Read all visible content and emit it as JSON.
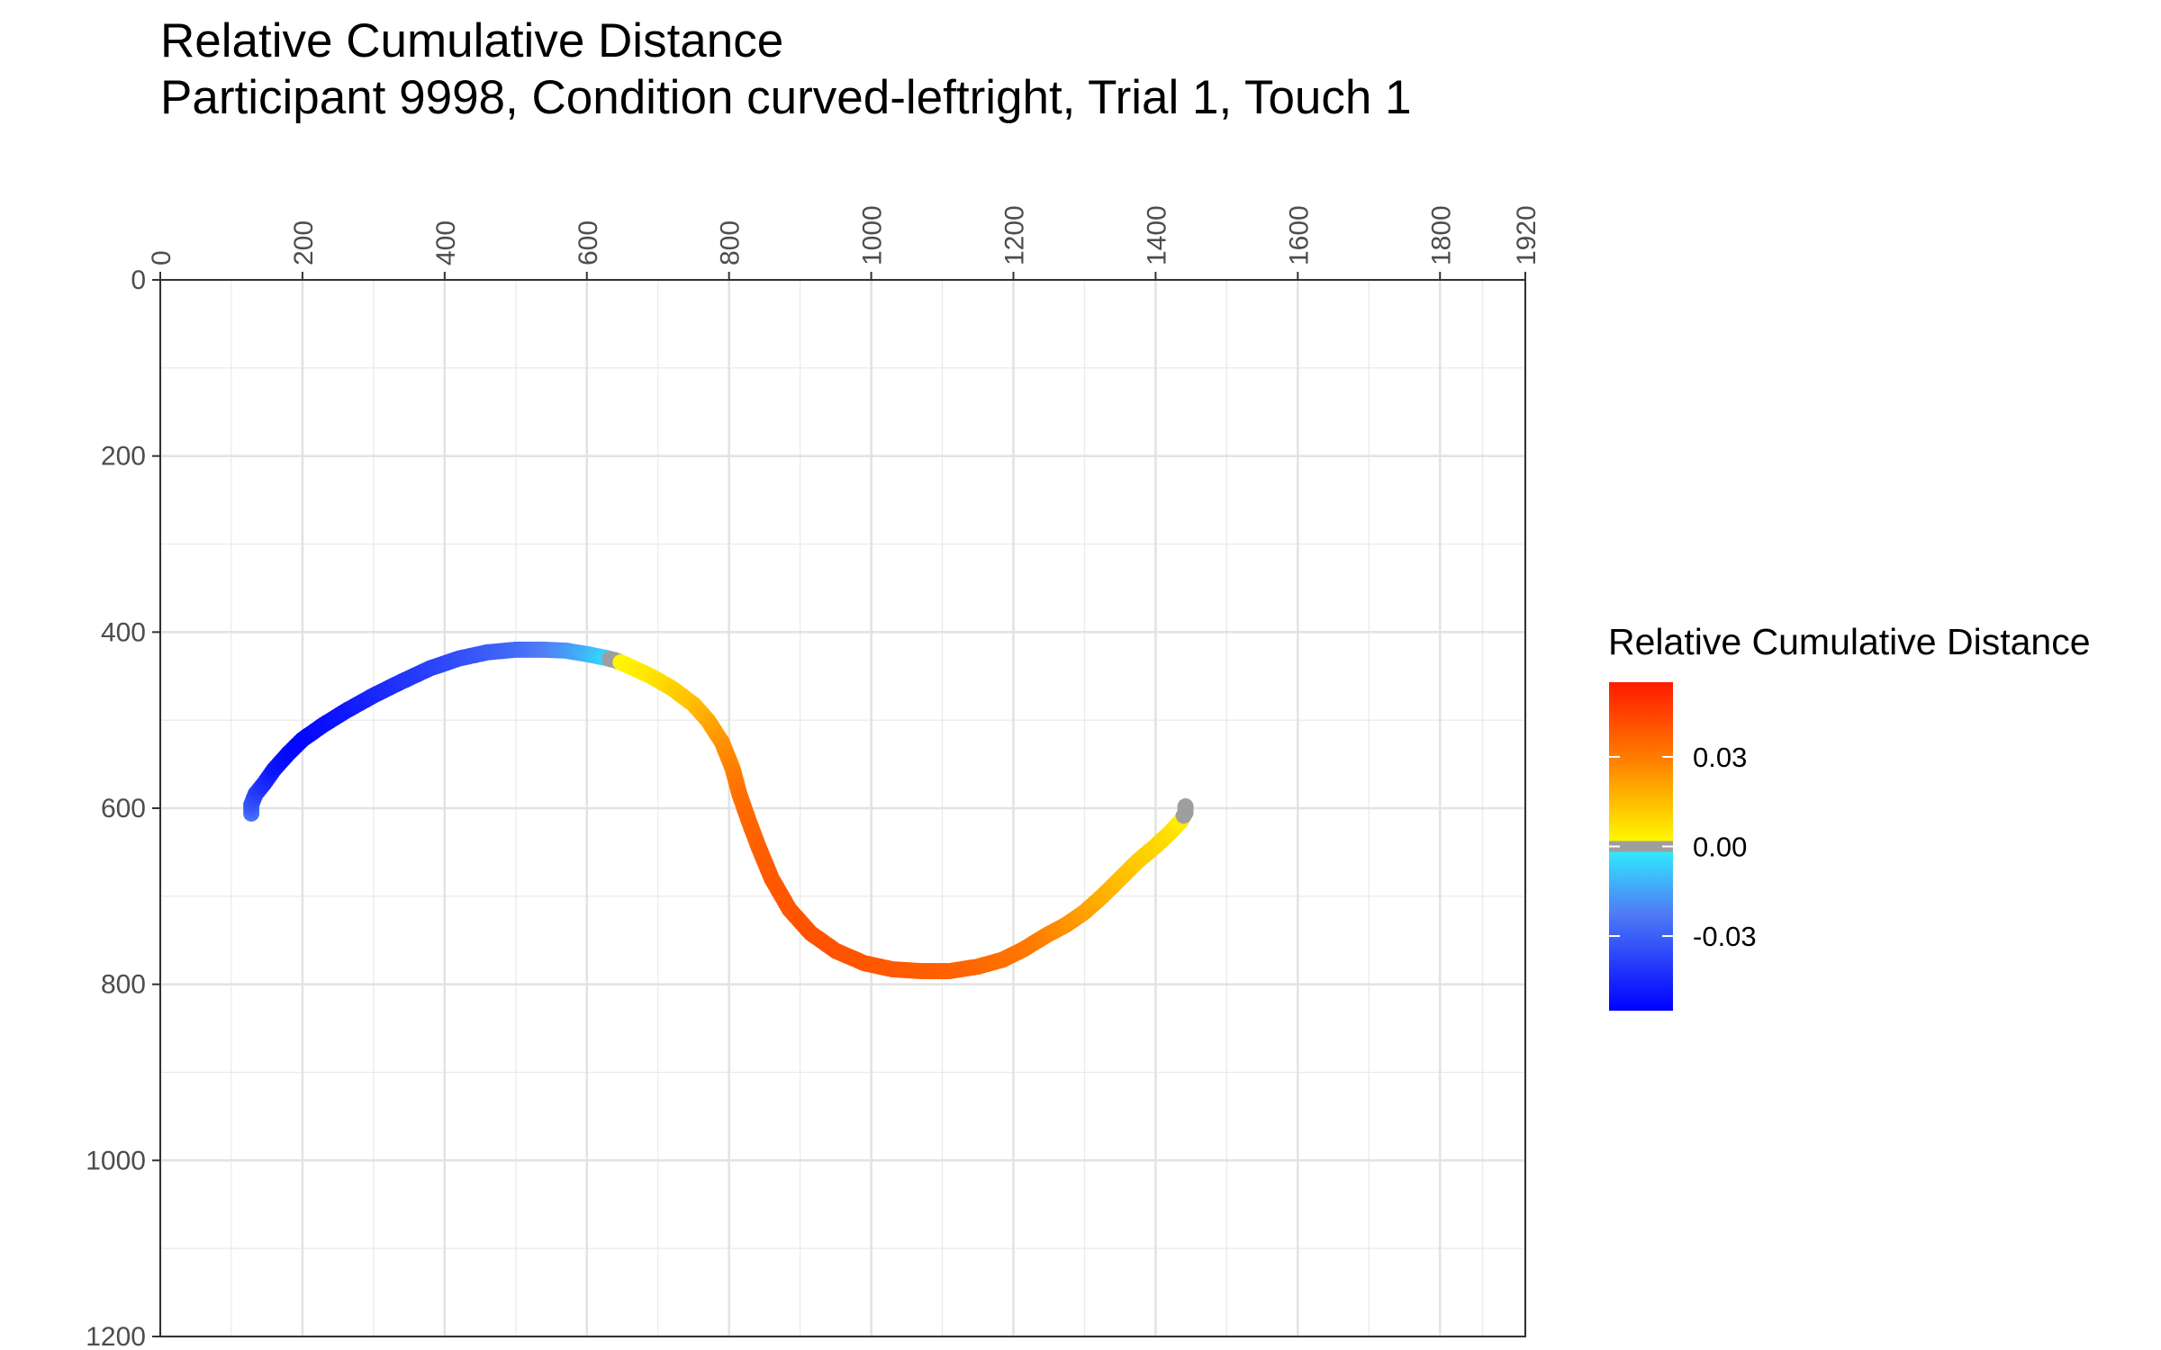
{
  "title": "Relative Cumulative Distance",
  "subtitle": "Participant 9998, Condition curved-leftright, Trial 1, Touch 1",
  "chart_data": {
    "type": "scatter",
    "title": "Relative Cumulative Distance",
    "subtitle": "Participant 9998, Condition curved-leftright, Trial 1, Touch 1",
    "xlabel": "",
    "ylabel": "",
    "xlim": [
      0,
      1920
    ],
    "ylim": [
      0,
      1200
    ],
    "x_axis_position": "top",
    "y_reversed": true,
    "grid": true,
    "x_ticks": [
      0,
      200,
      400,
      600,
      800,
      1000,
      1200,
      1400,
      1600,
      1800,
      1920
    ],
    "x_minor_ticks": [
      100,
      300,
      500,
      700,
      900,
      1100,
      1300,
      1500,
      1700,
      1860
    ],
    "y_ticks": [
      0,
      200,
      400,
      600,
      800,
      1000,
      1200
    ],
    "y_minor_ticks": [
      100,
      300,
      500,
      700,
      900,
      1100
    ],
    "legend": {
      "title": "Relative Cumulative Distance",
      "placement": "right",
      "min": -0.055,
      "max": 0.055,
      "breaks": [
        0.03,
        0.0,
        -0.03
      ],
      "break_labels": [
        "0.03",
        "0.00",
        "-0.03"
      ],
      "colors_negative": [
        "#0000ff",
        "#4f7df5",
        "#2ff2ff"
      ],
      "colors_positive": [
        "#ffff00",
        "#ff7a00",
        "#ff1a00"
      ],
      "na_color": "#9e9e9e"
    },
    "series": [
      {
        "points": [
          {
            "x": 128,
            "y": 606,
            "v": -0.03
          },
          {
            "x": 128,
            "y": 596,
            "v": -0.036
          },
          {
            "x": 134,
            "y": 584,
            "v": -0.04
          },
          {
            "x": 146,
            "y": 572,
            "v": -0.045
          },
          {
            "x": 160,
            "y": 556,
            "v": -0.05
          },
          {
            "x": 180,
            "y": 538,
            "v": -0.053
          },
          {
            "x": 200,
            "y": 522,
            "v": -0.054
          },
          {
            "x": 230,
            "y": 505,
            "v": -0.052
          },
          {
            "x": 260,
            "y": 490,
            "v": -0.05
          },
          {
            "x": 300,
            "y": 472,
            "v": -0.047
          },
          {
            "x": 340,
            "y": 456,
            "v": -0.044
          },
          {
            "x": 380,
            "y": 441,
            "v": -0.041
          },
          {
            "x": 420,
            "y": 430,
            "v": -0.038
          },
          {
            "x": 460,
            "y": 423,
            "v": -0.035
          },
          {
            "x": 500,
            "y": 420,
            "v": -0.032
          },
          {
            "x": 540,
            "y": 420,
            "v": -0.028
          },
          {
            "x": 570,
            "y": 421,
            "v": -0.022
          },
          {
            "x": 600,
            "y": 425,
            "v": -0.015
          },
          {
            "x": 625,
            "y": 429,
            "v": -0.008
          },
          {
            "x": 640,
            "y": 432,
            "v": null
          },
          {
            "x": 655,
            "y": 437,
            "v": 0.002
          },
          {
            "x": 690,
            "y": 450,
            "v": 0.005
          },
          {
            "x": 720,
            "y": 464,
            "v": 0.009
          },
          {
            "x": 750,
            "y": 482,
            "v": 0.013
          },
          {
            "x": 770,
            "y": 500,
            "v": 0.017
          },
          {
            "x": 790,
            "y": 525,
            "v": 0.022
          },
          {
            "x": 805,
            "y": 555,
            "v": 0.026
          },
          {
            "x": 815,
            "y": 585,
            "v": 0.03
          },
          {
            "x": 828,
            "y": 615,
            "v": 0.033
          },
          {
            "x": 842,
            "y": 645,
            "v": 0.035
          },
          {
            "x": 860,
            "y": 680,
            "v": 0.037
          },
          {
            "x": 885,
            "y": 715,
            "v": 0.038
          },
          {
            "x": 915,
            "y": 742,
            "v": 0.039
          },
          {
            "x": 950,
            "y": 762,
            "v": 0.039
          },
          {
            "x": 990,
            "y": 776,
            "v": 0.038
          },
          {
            "x": 1030,
            "y": 783,
            "v": 0.037
          },
          {
            "x": 1070,
            "y": 785,
            "v": 0.036
          },
          {
            "x": 1110,
            "y": 785,
            "v": 0.035
          },
          {
            "x": 1150,
            "y": 780,
            "v": 0.033
          },
          {
            "x": 1185,
            "y": 772,
            "v": 0.031
          },
          {
            "x": 1215,
            "y": 760,
            "v": 0.029
          },
          {
            "x": 1245,
            "y": 745,
            "v": 0.026
          },
          {
            "x": 1275,
            "y": 732,
            "v": 0.023
          },
          {
            "x": 1300,
            "y": 718,
            "v": 0.02
          },
          {
            "x": 1325,
            "y": 700,
            "v": 0.017
          },
          {
            "x": 1350,
            "y": 680,
            "v": 0.014
          },
          {
            "x": 1375,
            "y": 660,
            "v": 0.011
          },
          {
            "x": 1400,
            "y": 643,
            "v": 0.009
          },
          {
            "x": 1420,
            "y": 628,
            "v": 0.007
          },
          {
            "x": 1435,
            "y": 615,
            "v": 0.004
          },
          {
            "x": 1442,
            "y": 605,
            "v": null
          },
          {
            "x": 1442,
            "y": 598,
            "v": null
          }
        ]
      }
    ]
  }
}
